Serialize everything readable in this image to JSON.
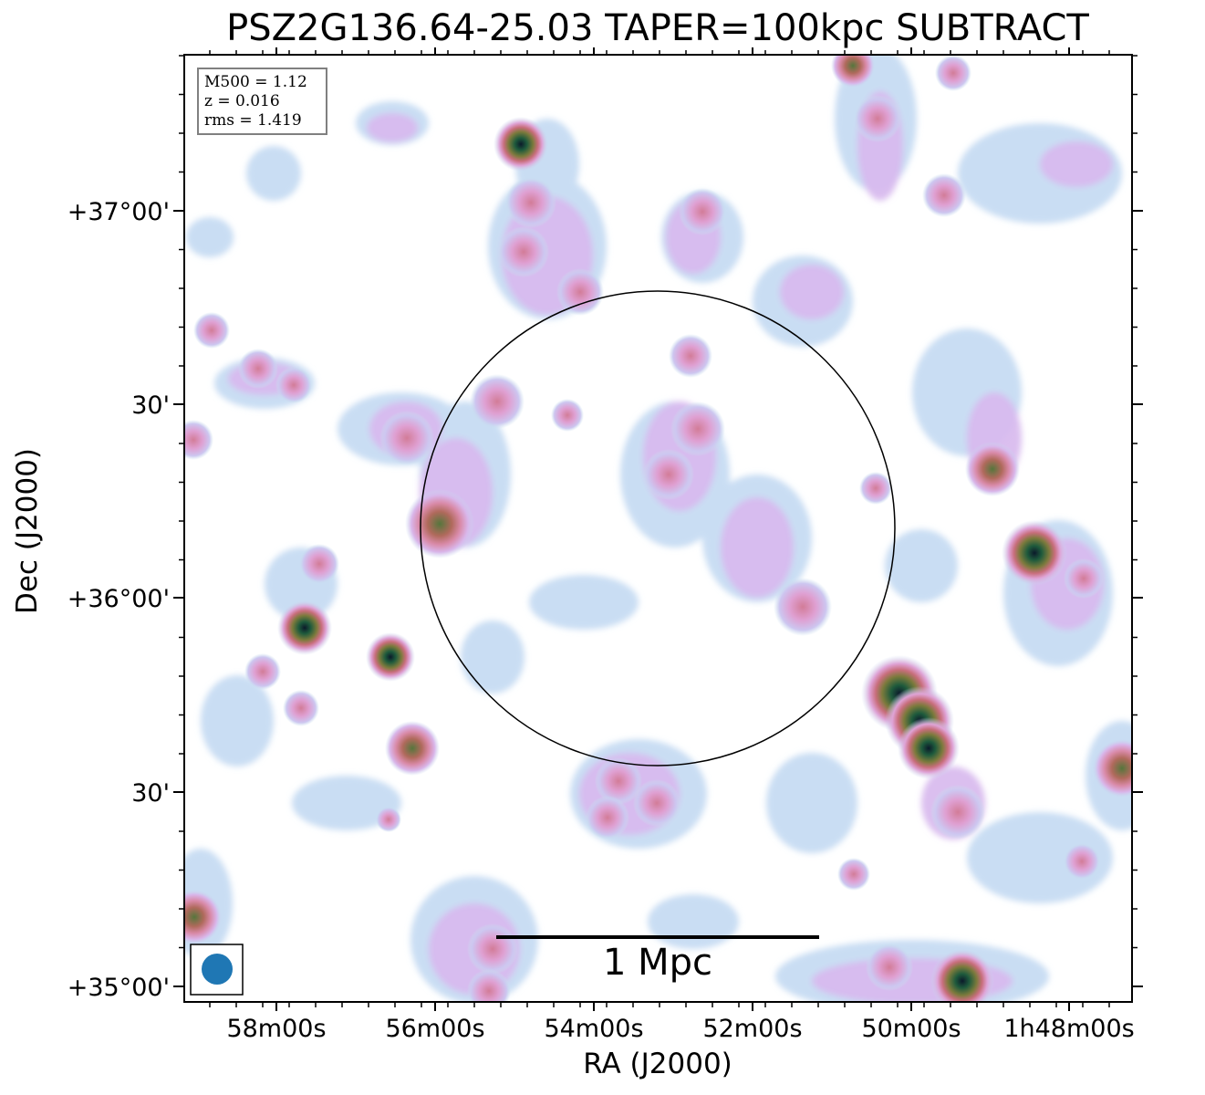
{
  "chart_data": {
    "type": "heatmap",
    "title": "PSZ2G136.64-25.03 TAPER=100kpc SUBTRACT",
    "xlabel": "RA (J2000)",
    "ylabel": "Dec (J2000)",
    "x_ticks": [
      "58m00s",
      "56m00s",
      "54m00s",
      "52m00s",
      "50m00s",
      "1h48m00s"
    ],
    "y_ticks": [
      "+35°00'",
      "30'",
      "+36°00'",
      "30'",
      "+37°00'"
    ],
    "colormap": "cubehelix-like (white → light blue → pink/magenta → olive → dark green → black)",
    "annotation": {
      "M500": "M500 = 1.12",
      "z": "z = 0.016",
      "rms": "rms = 1.419"
    },
    "scalebar_label": "1 Mpc",
    "beam_color": "#1f77b4",
    "circle": "R500 circle centered on cluster",
    "grid": false
  }
}
